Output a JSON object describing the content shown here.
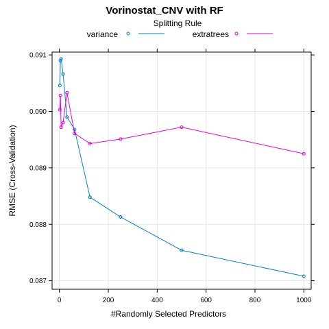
{
  "chart_data": {
    "type": "line",
    "title": "Vorinostat_CNV with RF",
    "xlabel": "#Randomly Selected Predictors",
    "ylabel": "RMSE (Cross-Validation)",
    "xlim": [
      -30,
      1030
    ],
    "ylim": [
      0.08685,
      0.09105
    ],
    "xticks": [
      0,
      200,
      400,
      600,
      800,
      1000
    ],
    "xtick_labels": [
      "0",
      "200",
      "400",
      "600",
      "800",
      "1000"
    ],
    "yticks": [
      0.087,
      0.088,
      0.089,
      0.09,
      0.091
    ],
    "ytick_labels": [
      "0.087",
      "0.088",
      "0.089",
      "0.090",
      "0.091"
    ],
    "grid": true,
    "legend": {
      "title": "Splitting Rule",
      "placement": "top"
    },
    "series": [
      {
        "name": "variance",
        "color": "#0080C0",
        "x": [
          2,
          4,
          7,
          15,
          31,
          62,
          125,
          250,
          500,
          1000
        ],
        "y": [
          0.09046,
          0.0909,
          0.09093,
          0.09066,
          0.0899,
          0.08968,
          0.08848,
          0.08813,
          0.08754,
          0.08708
        ]
      },
      {
        "name": "extratrees",
        "color": "#E000E0",
        "x": [
          2,
          4,
          7,
          15,
          31,
          62,
          125,
          250,
          500,
          1000
        ],
        "y": [
          0.09003,
          0.09028,
          0.08972,
          0.0898,
          0.09033,
          0.08961,
          0.08943,
          0.08951,
          0.08972,
          0.08925
        ]
      }
    ]
  }
}
